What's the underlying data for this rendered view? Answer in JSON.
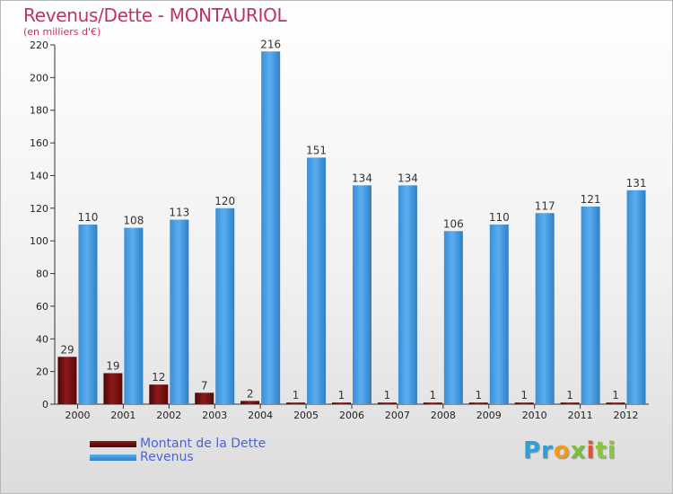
{
  "chart_data": {
    "type": "bar",
    "title": "Revenus/Dette - MONTAURIOL",
    "subtitle": "(en milliers d'€)",
    "xlabel": "",
    "ylabel": "",
    "ylim": [
      0,
      220
    ],
    "yticks": [
      0,
      20,
      40,
      60,
      80,
      100,
      120,
      140,
      160,
      180,
      200,
      220
    ],
    "grid": false,
    "legend_position": "bottom-left",
    "categories": [
      "2000",
      "2001",
      "2002",
      "2003",
      "2004",
      "2005",
      "2006",
      "2007",
      "2008",
      "2009",
      "2010",
      "2011",
      "2012"
    ],
    "series": [
      {
        "name": "Montant de la Dette",
        "color": "#6b0d0d",
        "values": [
          29,
          19,
          12,
          7,
          2,
          1,
          1,
          1,
          1,
          1,
          1,
          1,
          1
        ]
      },
      {
        "name": "Revenus",
        "color": "#3b93db",
        "values": [
          110,
          108,
          113,
          120,
          216,
          151,
          134,
          134,
          106,
          110,
          117,
          121,
          131
        ]
      }
    ]
  },
  "legend": {
    "items": [
      {
        "label": "Montant de la Dette",
        "color": "#6b0d0d"
      },
      {
        "label": "Revenus",
        "color": "#3b93db"
      }
    ]
  },
  "logo": {
    "part1": "Pr",
    "part2": "o",
    "part3": "x",
    "part4": "i",
    "part5": "ti"
  }
}
